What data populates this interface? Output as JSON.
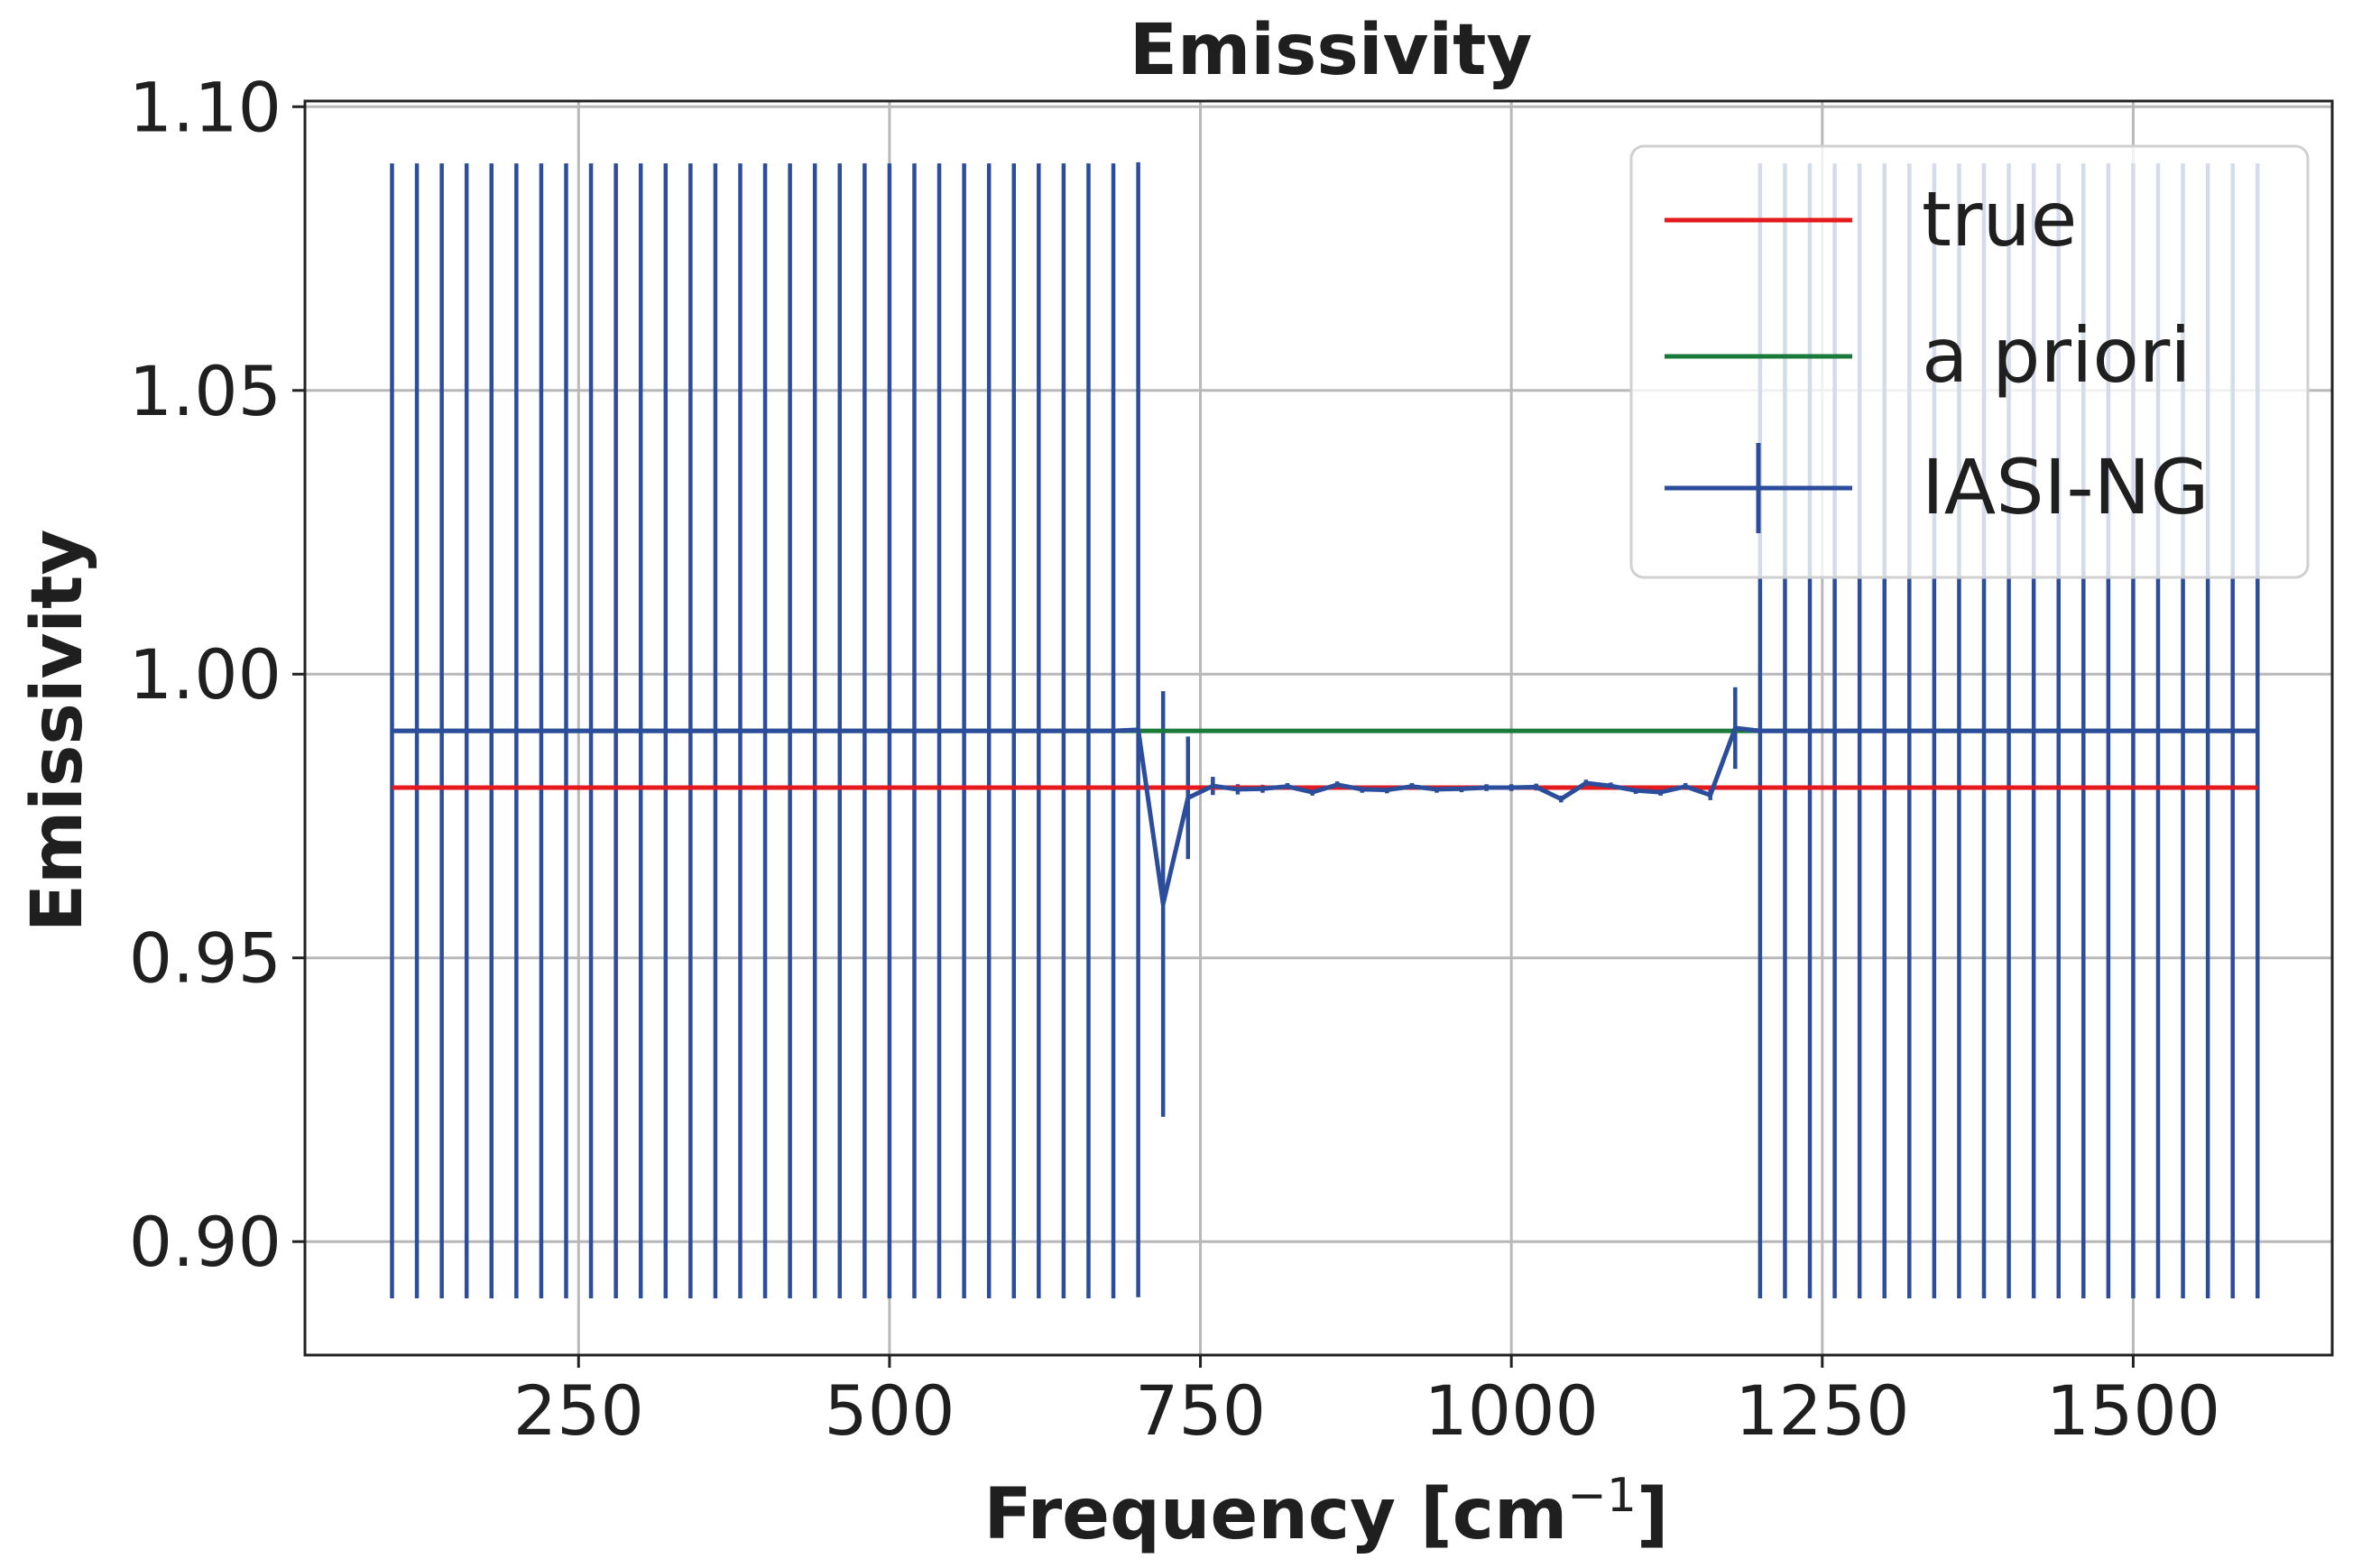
{
  "chart_data": {
    "type": "line",
    "title": "Emissivity",
    "xlabel": "Frequency [cm",
    "xlabel_sup": "−1",
    "xlabel_suffix": "]",
    "ylabel": "Emissivity",
    "xlim": [
      30,
      1660
    ],
    "ylim": [
      0.88,
      1.101
    ],
    "xticks": [
      250,
      500,
      750,
      1000,
      1250,
      1500
    ],
    "xtick_labels": [
      "250",
      "500",
      "750",
      "1000",
      "1250",
      "1500"
    ],
    "yticks": [
      0.9,
      0.95,
      1.0,
      1.05,
      1.1
    ],
    "ytick_labels": [
      "0.90",
      "0.95",
      "1.00",
      "1.05",
      "1.10"
    ],
    "grid": true,
    "legend_position": "top-right",
    "series": [
      {
        "name": "true",
        "color": "#e41a1c",
        "x": [
          100,
          1600
        ],
        "y": [
          0.98,
          0.98
        ]
      },
      {
        "name": "a priori",
        "color": "#1a7a3a",
        "x": [
          100,
          1600
        ],
        "y": [
          0.99,
          0.99
        ]
      },
      {
        "name": "IASI-NG",
        "color": "#2c4d9c",
        "x": [
          100,
          120,
          140,
          160,
          180,
          200,
          220,
          240,
          260,
          280,
          300,
          320,
          340,
          360,
          380,
          400,
          420,
          440,
          460,
          480,
          500,
          520,
          540,
          560,
          580,
          600,
          620,
          640,
          660,
          680,
          700,
          720,
          740,
          760,
          780,
          800,
          820,
          840,
          860,
          880,
          900,
          920,
          940,
          960,
          980,
          1000,
          1020,
          1040,
          1060,
          1080,
          1100,
          1120,
          1140,
          1160,
          1180,
          1200,
          1220,
          1240,
          1260,
          1280,
          1300,
          1320,
          1340,
          1360,
          1380,
          1400,
          1420,
          1440,
          1460,
          1480,
          1500,
          1520,
          1540,
          1560,
          1580,
          1600
        ],
        "y": [
          0.99,
          0.99,
          0.99,
          0.99,
          0.99,
          0.99,
          0.99,
          0.99,
          0.99,
          0.99,
          0.99,
          0.99,
          0.99,
          0.99,
          0.99,
          0.99,
          0.99,
          0.99,
          0.99,
          0.99,
          0.99,
          0.99,
          0.99,
          0.99,
          0.99,
          0.99,
          0.99,
          0.99,
          0.99,
          0.99,
          0.9902,
          0.9595,
          0.9782,
          0.9803,
          0.9797,
          0.9798,
          0.9802,
          0.9792,
          0.9805,
          0.9797,
          0.9796,
          0.9802,
          0.9797,
          0.9798,
          0.98,
          0.98,
          0.9801,
          0.978,
          0.9808,
          0.9803,
          0.9795,
          0.9792,
          0.9802,
          0.9787,
          0.9905,
          0.99,
          0.99,
          0.99,
          0.99,
          0.99,
          0.99,
          0.99,
          0.99,
          0.99,
          0.99,
          0.99,
          0.99,
          0.99,
          0.99,
          0.99,
          0.99,
          0.99,
          0.99,
          0.99,
          0.99,
          0.99
        ],
        "yerr": [
          0.1,
          0.1,
          0.1,
          0.1,
          0.1,
          0.1,
          0.1,
          0.1,
          0.1,
          0.1,
          0.1,
          0.1,
          0.1,
          0.1,
          0.1,
          0.1,
          0.1,
          0.1,
          0.1,
          0.1,
          0.1,
          0.1,
          0.1,
          0.1,
          0.1,
          0.1,
          0.1,
          0.1,
          0.1,
          0.1,
          0.1,
          0.0375,
          0.0108,
          0.0016,
          0.0009,
          0.0007,
          0.0006,
          0.0006,
          0.0006,
          0.0006,
          0.0006,
          0.0006,
          0.0006,
          0.0006,
          0.0006,
          0.0006,
          0.0006,
          0.0006,
          0.0006,
          0.0006,
          0.0006,
          0.0006,
          0.0006,
          0.0009,
          0.0072,
          0.1,
          0.1,
          0.1,
          0.1,
          0.1,
          0.1,
          0.1,
          0.1,
          0.1,
          0.1,
          0.1,
          0.1,
          0.1,
          0.1,
          0.1,
          0.1,
          0.1,
          0.1,
          0.1,
          0.1,
          0.1
        ]
      }
    ]
  }
}
